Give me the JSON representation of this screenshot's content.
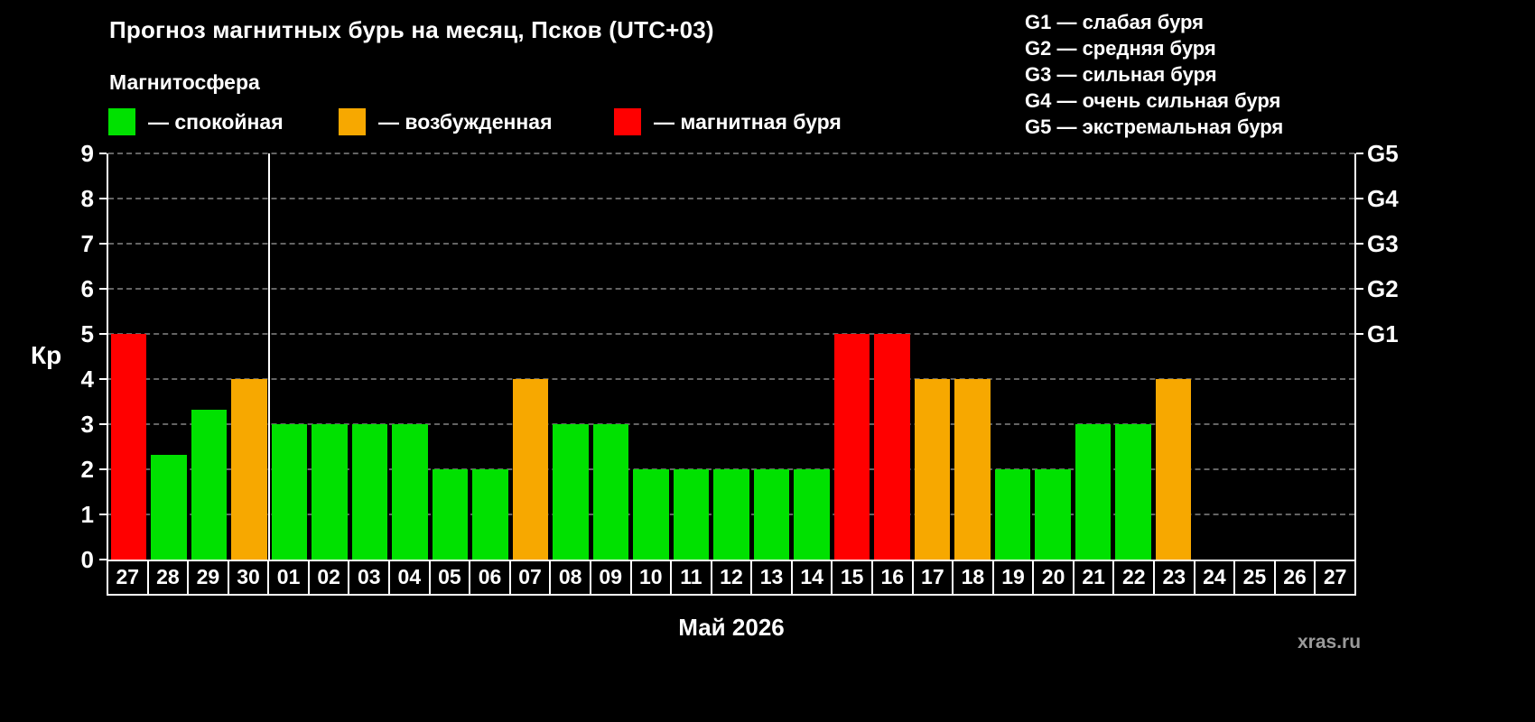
{
  "legend": {
    "heading": "Магнитосфера",
    "items": [
      {
        "key": "quiet",
        "label": "— спокойная",
        "color": "#00e100"
      },
      {
        "key": "excited",
        "label": "— возбужденная",
        "color": "#f7a800"
      },
      {
        "key": "storm",
        "label": "— магнитная буря",
        "color": "#ff0000"
      }
    ]
  },
  "g_legend": [
    "G1 — слабая буря",
    "G2 — средняя буря",
    "G3 — сильная буря",
    "G4 — очень сильная буря",
    "G5 — экстремальная буря"
  ],
  "watermark": "xras.ru",
  "chart_data": {
    "type": "bar",
    "title": "Прогноз магнитных бурь на месяц, Псков (UTC+03)",
    "ylabel": "Кр",
    "xlabel": "Май 2026",
    "ylim": [
      0,
      9
    ],
    "yticks": [
      0,
      1,
      2,
      3,
      4,
      5,
      6,
      7,
      8,
      9
    ],
    "grid": "dashed-horizontal",
    "right_axis": [
      {
        "label": "G5",
        "value": 9
      },
      {
        "label": "G4",
        "value": 8
      },
      {
        "label": "G3",
        "value": 7
      },
      {
        "label": "G2",
        "value": 6
      },
      {
        "label": "G1",
        "value": 5
      }
    ],
    "categories": [
      "27",
      "28",
      "29",
      "30",
      "01",
      "02",
      "03",
      "04",
      "05",
      "06",
      "07",
      "08",
      "09",
      "10",
      "11",
      "12",
      "13",
      "14",
      "15",
      "16",
      "17",
      "18",
      "19",
      "20",
      "21",
      "22",
      "23",
      "24",
      "25",
      "26",
      "27"
    ],
    "values": [
      5,
      2.33,
      3.33,
      4,
      3,
      3,
      3,
      3,
      2,
      2,
      4,
      3,
      3,
      2,
      2,
      2,
      2,
      2,
      5,
      5,
      4,
      4,
      2,
      2,
      3,
      3,
      4,
      null,
      null,
      null,
      null
    ],
    "thresholds": {
      "storm_min": 5,
      "excited_min": 4
    },
    "month_separator_index": 4,
    "colors": {
      "quiet": "#00e100",
      "excited": "#f7a800",
      "storm": "#ff0000",
      "grid": "#646464",
      "axis": "#ffffff"
    }
  }
}
